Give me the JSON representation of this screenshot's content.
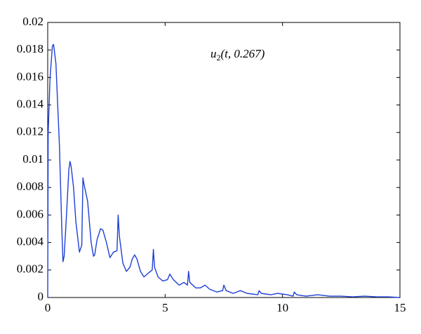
{
  "chart_data": {
    "type": "line",
    "annotation": {
      "base": "u",
      "subscript": "2",
      "rest": "(t, 0.267)"
    },
    "x": [
      0,
      0.02,
      0.1,
      0.2,
      0.25,
      0.35,
      0.5,
      0.6,
      0.65,
      0.7,
      0.8,
      0.9,
      0.95,
      1.0,
      1.1,
      1.2,
      1.35,
      1.45,
      1.5,
      1.55,
      1.7,
      1.85,
      1.95,
      2.0,
      2.1,
      2.25,
      2.35,
      2.5,
      2.65,
      2.8,
      2.95,
      3.0,
      3.05,
      3.2,
      3.35,
      3.5,
      3.6,
      3.7,
      3.8,
      3.95,
      4.1,
      4.3,
      4.45,
      4.5,
      4.55,
      4.7,
      4.9,
      5.1,
      5.2,
      5.35,
      5.6,
      5.8,
      5.95,
      6.0,
      6.05,
      6.3,
      6.5,
      6.7,
      6.9,
      7.2,
      7.45,
      7.5,
      7.6,
      7.9,
      8.2,
      8.5,
      8.95,
      9.0,
      9.1,
      9.5,
      9.8,
      10.2,
      10.45,
      10.5,
      10.6,
      11,
      11.5,
      12,
      12.5,
      13,
      13.5,
      14,
      14.5,
      15
    ],
    "series": [
      {
        "color": "#1f3fd6",
        "values": [
          0,
          0.012,
          0.016,
          0.0183,
          0.0184,
          0.017,
          0.011,
          0.005,
          0.0026,
          0.003,
          0.006,
          0.0093,
          0.0099,
          0.0095,
          0.008,
          0.0055,
          0.0033,
          0.0038,
          0.0087,
          0.0082,
          0.007,
          0.004,
          0.003,
          0.0031,
          0.0042,
          0.005,
          0.0049,
          0.004,
          0.0029,
          0.0033,
          0.0034,
          0.006,
          0.0045,
          0.0025,
          0.0019,
          0.0022,
          0.0028,
          0.0031,
          0.0028,
          0.0019,
          0.0015,
          0.0018,
          0.002,
          0.0035,
          0.0022,
          0.0015,
          0.0012,
          0.0013,
          0.0017,
          0.0013,
          0.0009,
          0.0011,
          0.0009,
          0.0019,
          0.0011,
          0.0007,
          0.0007,
          0.0009,
          0.0006,
          0.0004,
          0.0005,
          0.0009,
          0.0005,
          0.0003,
          0.0005,
          0.0003,
          0.0002,
          0.0005,
          0.0003,
          0.0002,
          0.0003,
          0.0002,
          0.0001,
          0.0004,
          0.0002,
          0.0001,
          0.0002,
          0.0001,
          0.0001,
          5e-05,
          0.0001,
          5e-05,
          5e-05,
          0
        ]
      }
    ],
    "xlim": [
      0,
      15
    ],
    "xticks": [
      0,
      5,
      10,
      15
    ],
    "ylim": [
      0,
      0.02
    ],
    "yticks": [
      0,
      0.002,
      0.004,
      0.006,
      0.008,
      0.01,
      0.012,
      0.014,
      0.016,
      0.018,
      0.02
    ]
  }
}
